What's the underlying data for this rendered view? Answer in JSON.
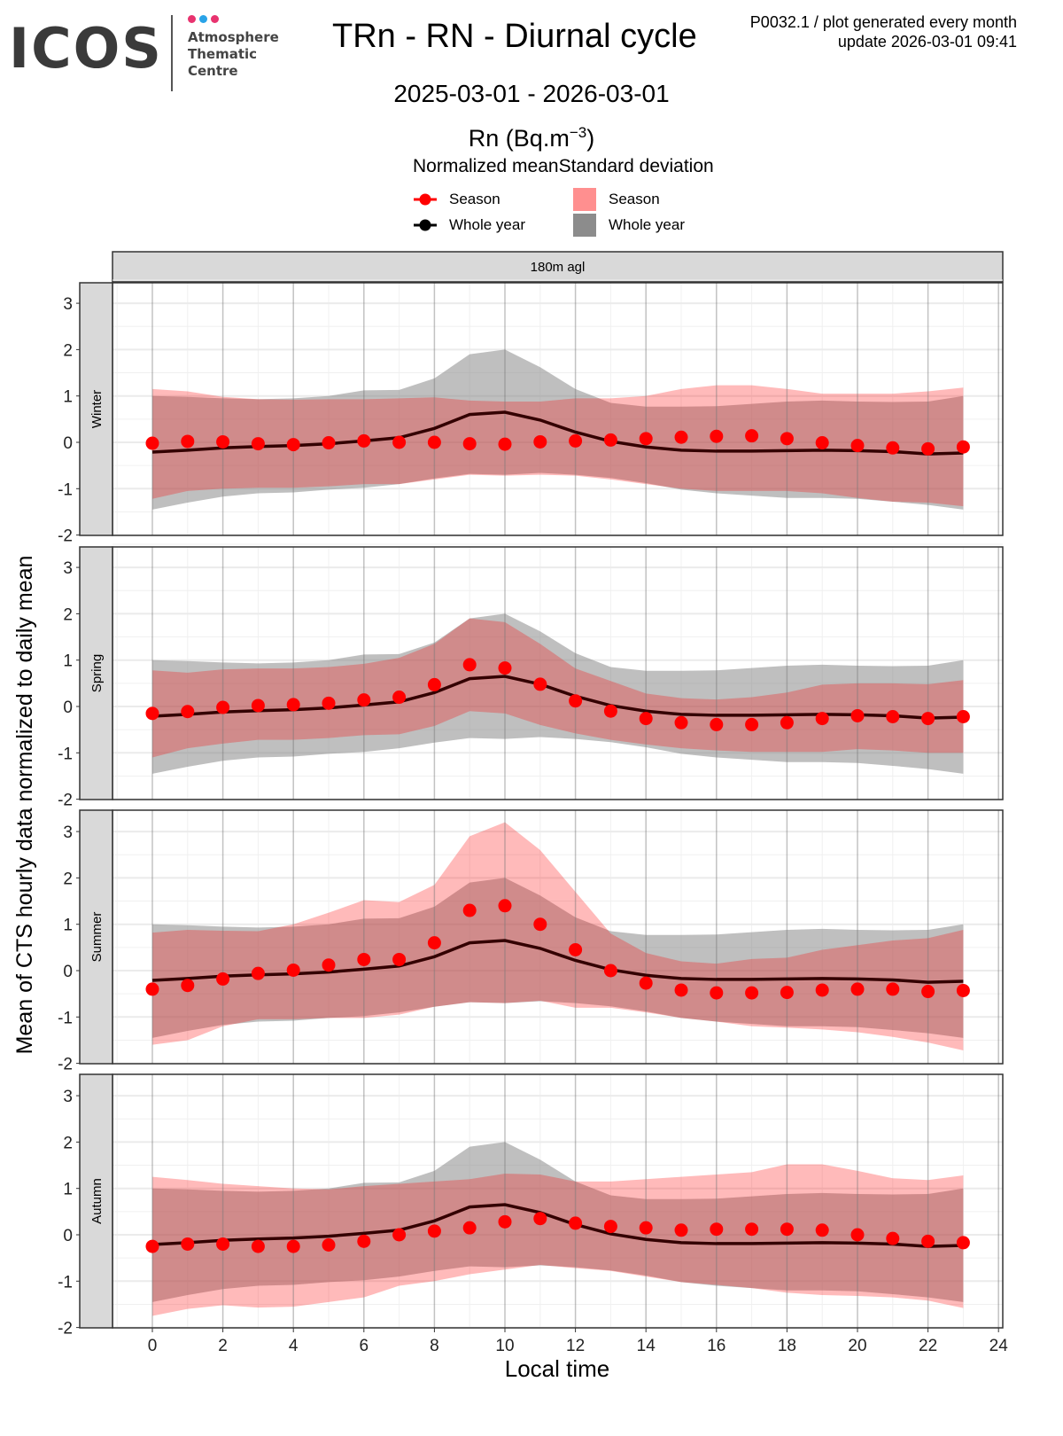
{
  "header": {
    "logo": "ICOS",
    "logo_subtitle": [
      "Atmosphere",
      "Thematic",
      "Centre"
    ],
    "logo_dot_colors": [
      "#e8336f",
      "#29a3e8",
      "#e8336f"
    ],
    "title": "TRn - RN - Diurnal cycle",
    "meta_line1": "P0032.1 / plot generated every month",
    "meta_line2": "update  2026-03-01 09:41",
    "period": "2025-03-01 - 2026-03-01",
    "unit_base": "Rn (Bq.m",
    "unit_exp": "−3",
    "unit_close": ")"
  },
  "legend": {
    "title_mean": "Normalized mean",
    "title_sd": "Standard deviation",
    "mean_season": "Season",
    "mean_whole_year": "Whole year",
    "sd_season": "Season",
    "sd_whole_year": "Whole year"
  },
  "chart_data": {
    "type": "line",
    "facet_column": "180m agl",
    "xlabel": "Local time",
    "ylabel": "Mean of CTS hourly data normalized to daily mean",
    "xlim": [
      -1.1,
      24.1
    ],
    "ylim": [
      -2,
      3.45
    ],
    "xticks": [
      0,
      2,
      4,
      6,
      8,
      10,
      12,
      14,
      16,
      18,
      20,
      22,
      24
    ],
    "yticks": [
      -2,
      -1,
      0,
      1,
      2,
      3
    ],
    "grid": true,
    "legend_position": "top",
    "colors": {
      "season": "#ff0000",
      "whole_year": "#330000",
      "season_sd": "#ff8f8f",
      "whole_year_sd": "#8c8c8c"
    },
    "x": [
      0,
      1,
      2,
      3,
      4,
      5,
      6,
      7,
      8,
      9,
      10,
      11,
      12,
      13,
      14,
      15,
      16,
      17,
      18,
      19,
      20,
      21,
      22,
      23
    ],
    "whole_year": {
      "mean": [
        -0.21,
        -0.17,
        -0.12,
        -0.09,
        -0.07,
        -0.03,
        0.03,
        0.1,
        0.3,
        0.6,
        0.65,
        0.48,
        0.22,
        0.02,
        -0.1,
        -0.17,
        -0.19,
        -0.19,
        -0.18,
        -0.17,
        -0.18,
        -0.2,
        -0.25,
        -0.23
      ],
      "sd_upper": [
        1.0,
        0.98,
        0.95,
        0.93,
        0.95,
        1.0,
        1.12,
        1.13,
        1.38,
        1.9,
        2.0,
        1.62,
        1.15,
        0.85,
        0.77,
        0.77,
        0.78,
        0.83,
        0.88,
        0.9,
        0.88,
        0.87,
        0.88,
        1.0
      ],
      "sd_lower": [
        -1.45,
        -1.3,
        -1.17,
        -1.1,
        -1.08,
        -1.02,
        -0.98,
        -0.9,
        -0.78,
        -0.68,
        -0.7,
        -0.66,
        -0.7,
        -0.77,
        -0.88,
        -1.02,
        -1.1,
        -1.15,
        -1.2,
        -1.2,
        -1.22,
        -1.28,
        -1.35,
        -1.45
      ]
    },
    "panels": [
      {
        "name": "Winter",
        "mean": [
          -0.02,
          0.02,
          0.01,
          -0.03,
          -0.05,
          -0.01,
          0.03,
          0.0,
          0.0,
          -0.03,
          -0.04,
          0.01,
          0.03,
          0.05,
          0.08,
          0.11,
          0.13,
          0.14,
          0.08,
          -0.01,
          -0.07,
          -0.12,
          -0.14,
          -0.1
        ],
        "sd_upper": [
          1.15,
          1.1,
          0.98,
          0.93,
          0.92,
          0.93,
          0.93,
          0.95,
          0.97,
          0.9,
          0.88,
          0.88,
          0.95,
          0.95,
          1.0,
          1.15,
          1.23,
          1.23,
          1.15,
          1.05,
          1.05,
          1.05,
          1.1,
          1.18
        ],
        "sd_lower": [
          -1.22,
          -1.05,
          -1.0,
          -0.98,
          -0.98,
          -0.95,
          -0.9,
          -0.9,
          -0.8,
          -0.7,
          -0.72,
          -0.7,
          -0.72,
          -0.8,
          -0.9,
          -1.0,
          -1.05,
          -1.05,
          -1.05,
          -1.1,
          -1.2,
          -1.28,
          -1.3,
          -1.38
        ]
      },
      {
        "name": "Spring",
        "mean": [
          -0.15,
          -0.11,
          -0.02,
          0.02,
          0.04,
          0.07,
          0.14,
          0.2,
          0.47,
          0.9,
          0.83,
          0.48,
          0.12,
          -0.1,
          -0.26,
          -0.35,
          -0.39,
          -0.39,
          -0.35,
          -0.26,
          -0.2,
          -0.22,
          -0.26,
          -0.22
        ],
        "sd_upper": [
          0.78,
          0.73,
          0.8,
          0.82,
          0.82,
          0.85,
          0.92,
          1.05,
          1.35,
          1.9,
          1.82,
          1.35,
          0.82,
          0.55,
          0.28,
          0.18,
          0.15,
          0.2,
          0.3,
          0.47,
          0.5,
          0.5,
          0.48,
          0.57
        ],
        "sd_lower": [
          -1.1,
          -0.9,
          -0.8,
          -0.72,
          -0.72,
          -0.68,
          -0.62,
          -0.6,
          -0.42,
          -0.1,
          -0.15,
          -0.4,
          -0.58,
          -0.72,
          -0.82,
          -0.9,
          -0.95,
          -0.98,
          -0.98,
          -0.98,
          -0.92,
          -0.95,
          -1.0,
          -1.0
        ]
      },
      {
        "name": "Summer",
        "mean": [
          -0.4,
          -0.32,
          -0.18,
          -0.06,
          0.01,
          0.12,
          0.24,
          0.24,
          0.6,
          1.3,
          1.4,
          1.0,
          0.45,
          0.0,
          -0.27,
          -0.42,
          -0.48,
          -0.48,
          -0.47,
          -0.42,
          -0.4,
          -0.4,
          -0.45,
          -0.43
        ],
        "sd_upper": [
          0.82,
          0.88,
          0.86,
          0.85,
          1.0,
          1.25,
          1.52,
          1.48,
          1.85,
          2.9,
          3.2,
          2.6,
          1.7,
          0.8,
          0.38,
          0.2,
          0.15,
          0.25,
          0.28,
          0.45,
          0.55,
          0.65,
          0.7,
          0.88
        ],
        "sd_lower": [
          -1.6,
          -1.5,
          -1.2,
          -1.05,
          -1.05,
          -1.02,
          -1.02,
          -0.95,
          -0.78,
          -0.68,
          -0.7,
          -0.65,
          -0.8,
          -0.8,
          -0.9,
          -1.02,
          -1.1,
          -1.2,
          -1.23,
          -1.27,
          -1.33,
          -1.43,
          -1.55,
          -1.72
        ]
      },
      {
        "name": "Autumn",
        "mean": [
          -0.25,
          -0.2,
          -0.2,
          -0.25,
          -0.25,
          -0.22,
          -0.14,
          0.0,
          0.08,
          0.15,
          0.28,
          0.35,
          0.25,
          0.18,
          0.15,
          0.1,
          0.12,
          0.12,
          0.12,
          0.1,
          0.0,
          -0.08,
          -0.14,
          -0.17
        ],
        "sd_upper": [
          1.25,
          1.18,
          1.1,
          1.05,
          1.0,
          0.98,
          1.05,
          1.1,
          1.15,
          1.2,
          1.32,
          1.3,
          1.15,
          1.15,
          1.2,
          1.25,
          1.3,
          1.35,
          1.52,
          1.52,
          1.38,
          1.22,
          1.18,
          1.28
        ],
        "sd_lower": [
          -1.75,
          -1.6,
          -1.52,
          -1.57,
          -1.55,
          -1.45,
          -1.35,
          -1.1,
          -1.0,
          -0.85,
          -0.75,
          -0.65,
          -0.72,
          -0.78,
          -0.9,
          -1.02,
          -1.08,
          -1.15,
          -1.25,
          -1.3,
          -1.32,
          -1.35,
          -1.42,
          -1.58
        ]
      }
    ]
  }
}
